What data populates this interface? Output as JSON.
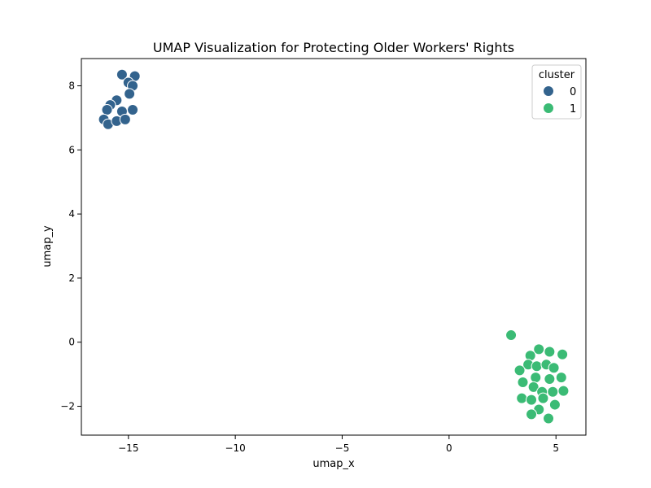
{
  "chart_data": {
    "type": "scatter",
    "title": "UMAP Visualization for Protecting Older Workers' Rights",
    "xlabel": "umap_x",
    "ylabel": "umap_y",
    "xlim": [
      -17.2,
      6.4
    ],
    "ylim": [
      -2.9,
      8.85
    ],
    "xticks": [
      -15,
      -10,
      -5,
      0,
      5
    ],
    "xtick_labels": [
      "−15",
      "−10",
      "−5",
      "0",
      "5"
    ],
    "yticks": [
      -2,
      0,
      2,
      4,
      6,
      8
    ],
    "ytick_labels": [
      "−2",
      "0",
      "2",
      "4",
      "6",
      "8"
    ],
    "grid": false,
    "legend": {
      "title": "cluster",
      "placement": "top-right"
    },
    "series": [
      {
        "name": "0",
        "color": "#33638d",
        "points": [
          [
            -15.3,
            8.35
          ],
          [
            -14.7,
            8.3
          ],
          [
            -15.0,
            8.1
          ],
          [
            -14.8,
            8.0
          ],
          [
            -14.95,
            7.75
          ],
          [
            -15.55,
            7.55
          ],
          [
            -15.85,
            7.4
          ],
          [
            -16.0,
            7.25
          ],
          [
            -15.3,
            7.2
          ],
          [
            -14.8,
            7.25
          ],
          [
            -16.15,
            6.95
          ],
          [
            -15.95,
            6.8
          ],
          [
            -15.55,
            6.9
          ],
          [
            -15.15,
            6.95
          ]
        ]
      },
      {
        "name": "1",
        "color": "#3bbb75",
        "points": [
          [
            2.9,
            0.22
          ],
          [
            4.2,
            -0.22
          ],
          [
            4.7,
            -0.3
          ],
          [
            5.3,
            -0.38
          ],
          [
            3.8,
            -0.42
          ],
          [
            3.7,
            -0.7
          ],
          [
            4.1,
            -0.75
          ],
          [
            4.55,
            -0.7
          ],
          [
            4.9,
            -0.8
          ],
          [
            3.3,
            -0.88
          ],
          [
            4.05,
            -1.1
          ],
          [
            4.7,
            -1.15
          ],
          [
            5.25,
            -1.1
          ],
          [
            3.45,
            -1.25
          ],
          [
            3.95,
            -1.4
          ],
          [
            4.35,
            -1.55
          ],
          [
            4.85,
            -1.55
          ],
          [
            5.35,
            -1.52
          ],
          [
            3.4,
            -1.75
          ],
          [
            3.85,
            -1.8
          ],
          [
            4.4,
            -1.75
          ],
          [
            4.95,
            -1.95
          ],
          [
            4.2,
            -2.1
          ],
          [
            3.85,
            -2.25
          ],
          [
            4.65,
            -2.38
          ]
        ]
      }
    ]
  }
}
